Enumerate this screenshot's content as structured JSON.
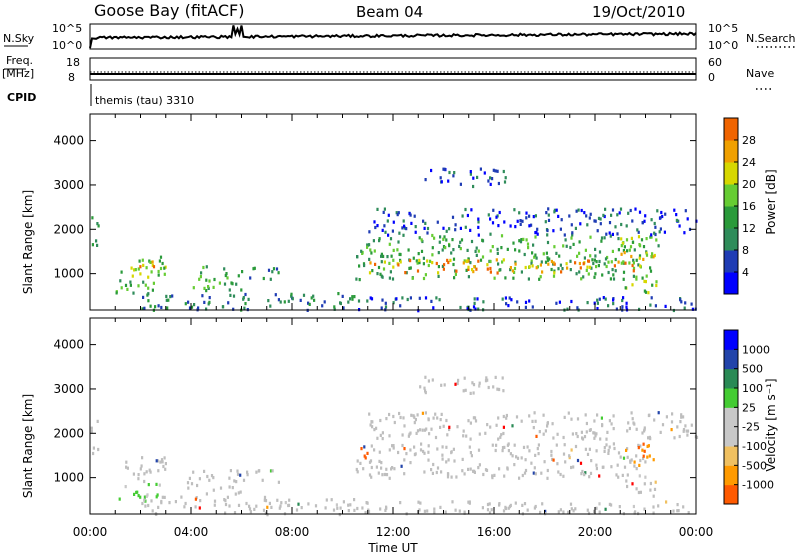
{
  "header": {
    "station": "Goose Bay (fitACF)",
    "beam": "Beam 04",
    "date": "19/Oct/2010"
  },
  "top_panels": {
    "nsky_label": "N.Sky",
    "nsky_ticks": [
      "10^5",
      "10^0"
    ],
    "nsearch_label": "N.Search",
    "nsearch_ticks": [
      "10^5",
      "10^0"
    ],
    "freq_label_1": "Freq.",
    "freq_label_2": "[MHz]",
    "freq_ticks": [
      "18",
      "8"
    ],
    "nave_label": "Nave",
    "nave_ticks": [
      "60",
      "0"
    ],
    "cpid_label": "CPID",
    "cpid_text": "themis (tau) 3310"
  },
  "colors": {
    "power": [
      "#0000ff",
      "#1f3cb4",
      "#2f8c5a",
      "#2a9a3a",
      "#66cc33",
      "#d7d700",
      "#f0a000",
      "#f06400",
      "#ff0000"
    ],
    "velocity": [
      "#ff0000",
      "#ff5a00",
      "#ff9a00",
      "#f0c060",
      "#c8c8c8",
      "#c8c8c8",
      "#44cc33",
      "#2a8a55",
      "#2244aa",
      "#0000ff"
    ],
    "ground_scatter": "#bebebe"
  },
  "chart_data": [
    {
      "type": "heatmap",
      "title": "Power",
      "xlabel": "",
      "ylabel": "Slant Range [km]",
      "xlim": [
        "00:00",
        "00:00"
      ],
      "ylim": [
        180,
        4600
      ],
      "xticks": [
        "00:00",
        "04:00",
        "08:00",
        "12:00",
        "16:00",
        "20:00",
        "00:00"
      ],
      "yticks": [
        1000,
        2000,
        3000,
        4000
      ],
      "colorbar": {
        "label": "Power [dB]",
        "ticks": [
          4,
          8,
          12,
          16,
          20,
          24,
          28
        ]
      },
      "regions": [
        {
          "t0": 0.0,
          "t1": 0.3,
          "r0": 1500,
          "r1": 2400,
          "level": 2
        },
        {
          "t0": 1.2,
          "t1": 3.0,
          "r0": 900,
          "r1": 1500,
          "level": 4
        },
        {
          "t0": 1.8,
          "t1": 2.6,
          "r0": 1050,
          "r1": 1300,
          "level": 6
        },
        {
          "t0": 1.0,
          "t1": 2.8,
          "r0": 500,
          "r1": 900,
          "level": 3
        },
        {
          "t0": 3.8,
          "t1": 6.0,
          "r0": 650,
          "r1": 1200,
          "level": 3
        },
        {
          "t0": 6.0,
          "t1": 7.5,
          "r0": 900,
          "r1": 1200,
          "level": 2
        },
        {
          "t0": 2.0,
          "t1": 10.5,
          "r0": 200,
          "r1": 600,
          "level": 2
        },
        {
          "t0": 10.5,
          "t1": 22.5,
          "r0": 900,
          "r1": 1900,
          "level": 3
        },
        {
          "t0": 11.0,
          "t1": 21.5,
          "r0": 1050,
          "r1": 1350,
          "level": 6
        },
        {
          "t0": 20.8,
          "t1": 22.4,
          "r0": 1200,
          "r1": 1900,
          "level": 5
        },
        {
          "t0": 21.0,
          "t1": 22.4,
          "r0": 600,
          "r1": 1000,
          "level": 4
        },
        {
          "t0": 11.0,
          "t1": 24.0,
          "r0": 1900,
          "r1": 2500,
          "level": 1
        },
        {
          "t0": 10.5,
          "t1": 24.0,
          "r0": 200,
          "r1": 500,
          "level": 1
        },
        {
          "t0": 13.0,
          "t1": 16.5,
          "r0": 3000,
          "r1": 3400,
          "level": 1
        }
      ]
    },
    {
      "type": "heatmap",
      "title": "Velocity",
      "xlabel": "Time UT",
      "ylabel": "Slant Range [km]",
      "xlim": [
        "00:00",
        "00:00"
      ],
      "ylim": [
        180,
        4600
      ],
      "xticks": [
        "00:00",
        "04:00",
        "08:00",
        "12:00",
        "16:00",
        "20:00",
        "00:00"
      ],
      "yticks": [
        1000,
        2000,
        3000,
        4000
      ],
      "colorbar": {
        "label": "Velocity [m s⁻¹]",
        "ticks": [
          1000,
          500,
          100,
          25,
          -25,
          -100,
          -500,
          -1000
        ]
      },
      "regions": [
        {
          "t0": 0.0,
          "t1": 0.3,
          "r0": 1500,
          "r1": 2400,
          "gs": true
        },
        {
          "t0": 1.2,
          "t1": 3.0,
          "r0": 900,
          "r1": 1500,
          "gs": true
        },
        {
          "t0": 1.0,
          "t1": 2.8,
          "r0": 500,
          "r1": 900,
          "v": 100
        },
        {
          "t0": 3.8,
          "t1": 6.0,
          "r0": 650,
          "r1": 1200,
          "gs": true
        },
        {
          "t0": 6.0,
          "t1": 7.5,
          "r0": 900,
          "r1": 1200,
          "gs": true
        },
        {
          "t0": 2.0,
          "t1": 10.5,
          "r0": 200,
          "r1": 600,
          "gs": true
        },
        {
          "t0": 10.5,
          "t1": 22.0,
          "r0": 1000,
          "r1": 1800,
          "gs": true
        },
        {
          "t0": 10.6,
          "t1": 11.0,
          "r0": 1350,
          "r1": 1700,
          "v": -400
        },
        {
          "t0": 21.5,
          "t1": 22.4,
          "r0": 1200,
          "r1": 1800,
          "v": -300
        },
        {
          "t0": 21.0,
          "t1": 22.4,
          "r0": 600,
          "r1": 1000,
          "gs": true
        },
        {
          "t0": 11.0,
          "t1": 24.0,
          "r0": 1900,
          "r1": 2500,
          "gs": true
        },
        {
          "t0": 10.5,
          "t1": 24.0,
          "r0": 200,
          "r1": 500,
          "gs": true
        },
        {
          "t0": 13.0,
          "t1": 16.5,
          "r0": 2900,
          "r1": 3300,
          "gs": true
        }
      ]
    }
  ]
}
